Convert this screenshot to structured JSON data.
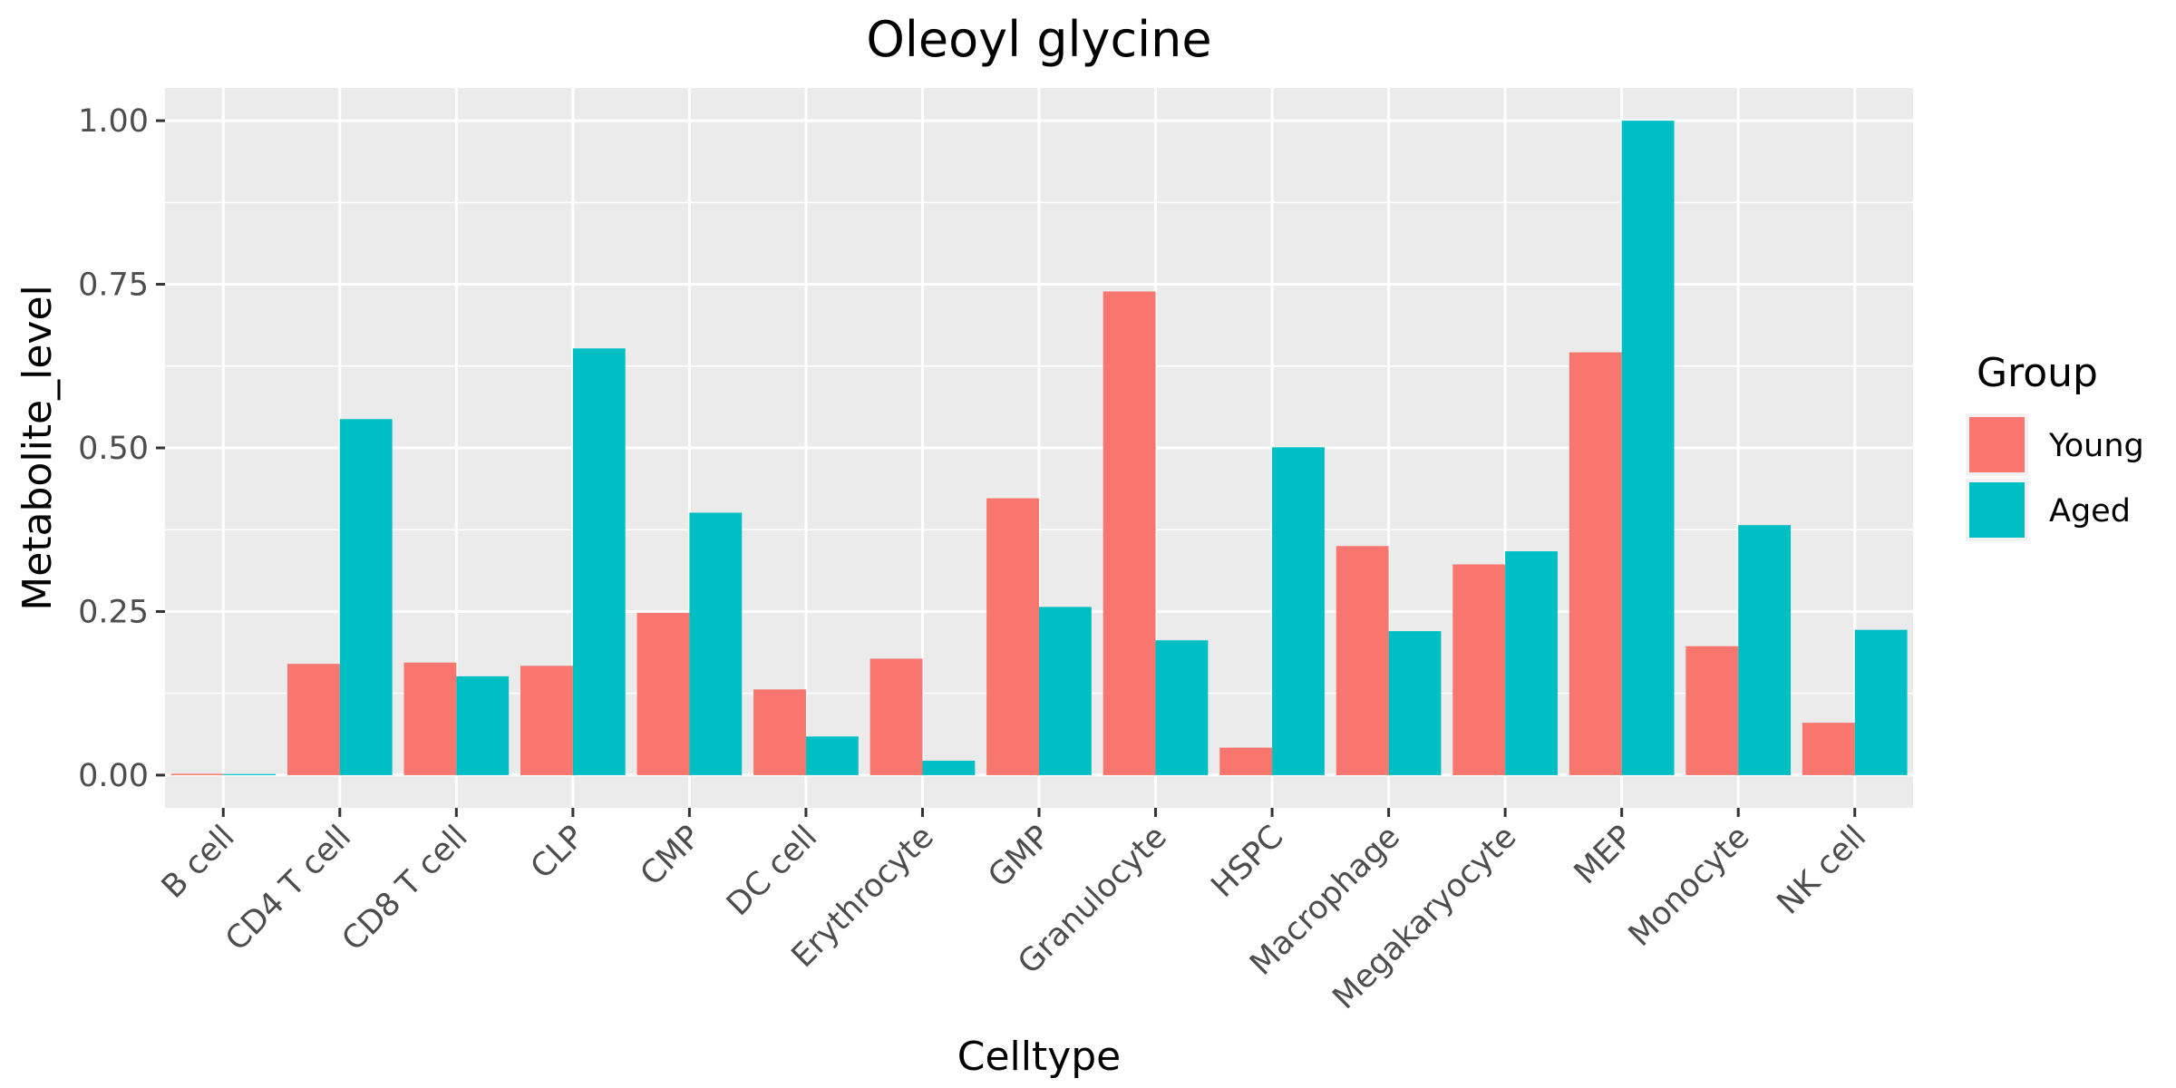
{
  "chart_data": {
    "type": "bar",
    "title": "Oleoyl glycine",
    "xlabel": "Celltype",
    "ylabel": "Metabolite_level",
    "categories": [
      "B cell",
      "CD4 T cell",
      "CD8 T cell",
      "CLP",
      "CMP",
      "DC cell",
      "Erythrocyte",
      "GMP",
      "Granulocyte",
      "HSPC",
      "Macrophage",
      "Megakaryocyte",
      "MEP",
      "Monocyte",
      "NK cell"
    ],
    "series": [
      {
        "name": "Young",
        "color": "#F8766D",
        "values": [
          0.002,
          0.17,
          0.172,
          0.167,
          0.248,
          0.131,
          0.178,
          0.423,
          0.739,
          0.042,
          0.35,
          0.322,
          0.646,
          0.197,
          0.08
        ]
      },
      {
        "name": "Aged",
        "color": "#00BFC4",
        "values": [
          0.0,
          0.544,
          0.151,
          0.652,
          0.401,
          0.059,
          0.022,
          0.257,
          0.206,
          0.501,
          0.22,
          0.342,
          1.0,
          0.382,
          0.222
        ]
      }
    ],
    "ylim": [
      -0.05,
      1.05
    ],
    "yticks": [
      0.0,
      0.25,
      0.5,
      0.75,
      1.0
    ],
    "ytick_labels": [
      "0.00",
      "0.25",
      "0.50",
      "0.75",
      "1.00"
    ],
    "legend": {
      "title": "Group",
      "position": "right"
    },
    "grid": true,
    "panel_background": "#EBEBEB"
  }
}
